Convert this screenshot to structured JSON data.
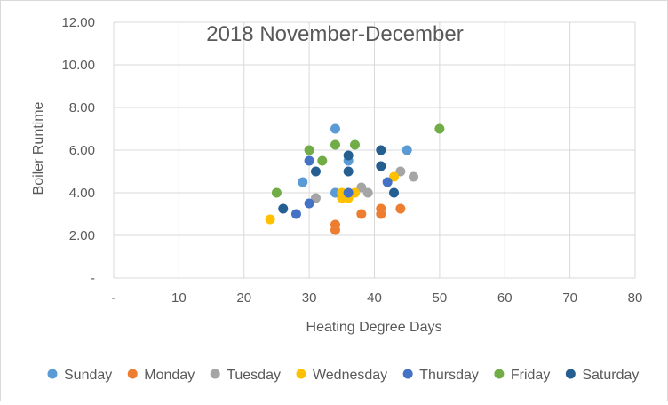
{
  "chart_data": {
    "type": "scatter",
    "title": "2018 November-December",
    "xlabel": "Heating Degree Days",
    "ylabel": "Boiler Runtime",
    "xlim": [
      0,
      80
    ],
    "ylim": [
      0,
      12
    ],
    "x_ticks": [
      {
        "value": 0,
        "label": "-"
      },
      {
        "value": 10,
        "label": "10"
      },
      {
        "value": 20,
        "label": "20"
      },
      {
        "value": 30,
        "label": "30"
      },
      {
        "value": 40,
        "label": "40"
      },
      {
        "value": 50,
        "label": "50"
      },
      {
        "value": 60,
        "label": "60"
      },
      {
        "value": 70,
        "label": "70"
      },
      {
        "value": 80,
        "label": "80"
      }
    ],
    "y_ticks": [
      {
        "value": 0,
        "label": "-"
      },
      {
        "value": 2,
        "label": "2.00"
      },
      {
        "value": 4,
        "label": "4.00"
      },
      {
        "value": 6,
        "label": "6.00"
      },
      {
        "value": 8,
        "label": "8.00"
      },
      {
        "value": 10,
        "label": "10.00"
      },
      {
        "value": 12,
        "label": "12.00"
      }
    ],
    "grid": {
      "vertical": true,
      "horizontal": true
    },
    "legend_position": "bottom",
    "series": [
      {
        "name": "Sunday",
        "color": "#5B9BD5",
        "points": [
          [
            34,
            7.0
          ],
          [
            45,
            6.0
          ],
          [
            36,
            5.5
          ],
          [
            29,
            4.5
          ],
          [
            34,
            4.0
          ]
        ]
      },
      {
        "name": "Monday",
        "color": "#ED7D31",
        "points": [
          [
            34,
            2.5
          ],
          [
            34,
            2.25
          ],
          [
            38,
            3.0
          ],
          [
            41,
            3.25
          ],
          [
            41,
            3.0
          ],
          [
            44,
            3.25
          ]
        ]
      },
      {
        "name": "Tuesday",
        "color": "#A5A5A5",
        "points": [
          [
            31,
            3.75
          ],
          [
            38,
            4.25
          ],
          [
            39,
            4.0
          ],
          [
            44,
            5.0
          ],
          [
            46,
            4.75
          ]
        ]
      },
      {
        "name": "Wednesday",
        "color": "#FFC000",
        "points": [
          [
            24,
            2.75
          ],
          [
            35,
            4.0
          ],
          [
            35,
            3.75
          ],
          [
            36,
            3.75
          ],
          [
            37,
            4.0
          ],
          [
            43,
            4.75
          ]
        ]
      },
      {
        "name": "Thursday",
        "color": "#4472C4",
        "points": [
          [
            28,
            3.0
          ],
          [
            30,
            3.5
          ],
          [
            30,
            5.5
          ],
          [
            36,
            4.0
          ],
          [
            42,
            4.5
          ]
        ]
      },
      {
        "name": "Friday",
        "color": "#70AD47",
        "points": [
          [
            25,
            4.0
          ],
          [
            30,
            6.0
          ],
          [
            32,
            5.5
          ],
          [
            34,
            6.25
          ],
          [
            37,
            6.25
          ],
          [
            50,
            7.0
          ]
        ]
      },
      {
        "name": "Saturday",
        "color": "#255E91",
        "points": [
          [
            26,
            3.25
          ],
          [
            31,
            5.0
          ],
          [
            36,
            5.75
          ],
          [
            36,
            5.0
          ],
          [
            41,
            6.0
          ],
          [
            41,
            5.25
          ],
          [
            43,
            4.0
          ]
        ]
      }
    ]
  }
}
